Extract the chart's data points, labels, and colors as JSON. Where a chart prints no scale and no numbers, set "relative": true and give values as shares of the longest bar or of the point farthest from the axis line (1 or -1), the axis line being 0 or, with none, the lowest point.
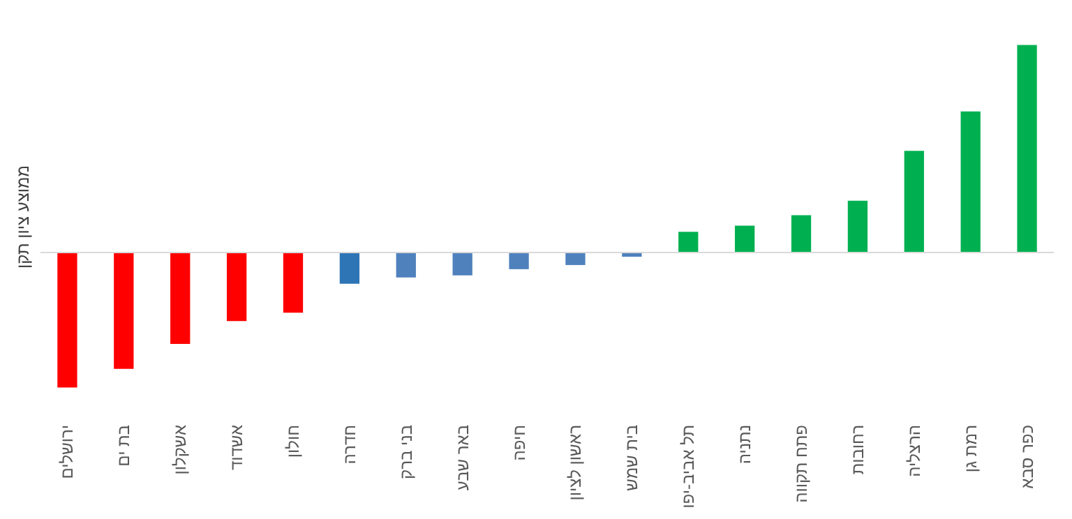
{
  "chart_data": {
    "type": "bar",
    "relative": true,
    "ylabel": "ממוצע ציון תקן",
    "categories": [
      "ירושלים",
      "בת ים",
      "אשקלון",
      "אשדוד",
      "חולון",
      "חדרה",
      "בני ברק",
      "באר שבע",
      "חיפה",
      "ראשון לציון",
      "בית שמש",
      "תל אביב-יפו",
      "נתניה",
      "פתח תקווה",
      "רחובות",
      "הרצליה",
      "רמת גן",
      "כפר סבא"
    ],
    "values": [
      -0.65,
      -0.56,
      -0.44,
      -0.33,
      -0.29,
      -0.15,
      -0.12,
      -0.11,
      -0.08,
      -0.06,
      -0.02,
      0.1,
      0.13,
      0.18,
      0.25,
      0.49,
      0.68,
      1
    ],
    "colors": [
      "#ff0000",
      "#ff0000",
      "#ff0000",
      "#ff0000",
      "#ff0000",
      "#2e75b6",
      "#4f81bd",
      "#4f81bd",
      "#4f81bd",
      "#4f81bd",
      "#4f81bd",
      "#00b050",
      "#00b050",
      "#00b050",
      "#00b050",
      "#00b050",
      "#00b050",
      "#00b050"
    ]
  }
}
